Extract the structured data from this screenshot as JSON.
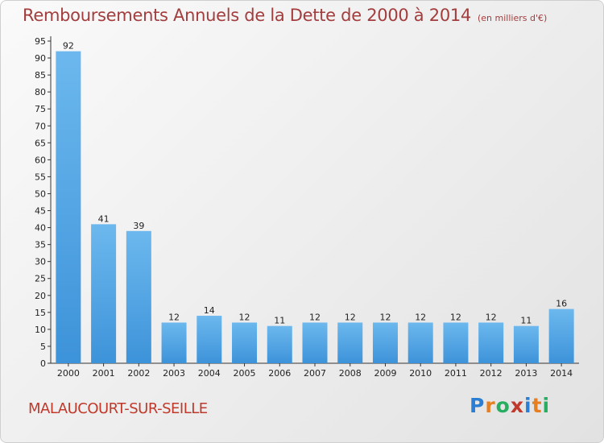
{
  "title": "Remboursements Annuels de la Dette de 2000 à 2014",
  "unit": "(en milliers d'€)",
  "commune": "MALAUCOURT-SUR-SEILLE",
  "brand": {
    "letters": [
      "P",
      "r",
      "o",
      "x",
      "i",
      "t",
      "i"
    ],
    "colors": [
      "#2a7fd4",
      "#e67e22",
      "#27ae60",
      "#c0392b",
      "#2a7fd4",
      "#e67e22",
      "#27ae60"
    ]
  },
  "colors": {
    "bar": "#3d93d9",
    "bar_light": "#6cb8ee",
    "title": "#a33d3d"
  },
  "chart_data": {
    "type": "bar",
    "categories": [
      "2000",
      "2001",
      "2002",
      "2003",
      "2004",
      "2005",
      "2006",
      "2007",
      "2008",
      "2009",
      "2010",
      "2011",
      "2012",
      "2013",
      "2014"
    ],
    "values": [
      92,
      41,
      39,
      12,
      14,
      12,
      11,
      12,
      12,
      12,
      12,
      12,
      12,
      11,
      16
    ],
    "ylim": [
      0,
      95
    ],
    "yticks": [
      0,
      5,
      10,
      15,
      20,
      25,
      30,
      35,
      40,
      45,
      50,
      55,
      60,
      65,
      70,
      75,
      80,
      85,
      90,
      95
    ],
    "grid": false
  }
}
